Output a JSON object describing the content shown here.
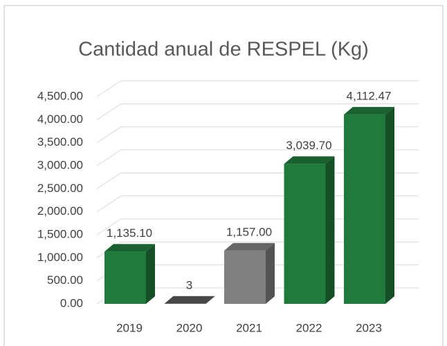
{
  "chart_data": {
    "type": "bar3d",
    "title": "Cantidad anual de RESPEL (Kg)",
    "categories": [
      "2019",
      "2020",
      "2021",
      "2022",
      "2023"
    ],
    "values": [
      1135.1,
      3,
      1157,
      3039.7,
      4112.47
    ],
    "value_labels": [
      "1,135.10",
      "3",
      "1,157.00",
      "3,039.70",
      "4,112.47"
    ],
    "colors": [
      "#1f7a3b",
      "#595959",
      "#808080",
      "#1f7a3b",
      "#1f7a3b"
    ],
    "ylim": [
      0,
      4500
    ],
    "yticks": [
      {
        "value": 0,
        "label": "0.00"
      },
      {
        "value": 500,
        "label": "500.00"
      },
      {
        "value": 1000,
        "label": "1,000.00"
      },
      {
        "value": 1500,
        "label": "1,500.00"
      },
      {
        "value": 2000,
        "label": "2,000.00"
      },
      {
        "value": 2500,
        "label": "2,500.00"
      },
      {
        "value": 3000,
        "label": "3,000.00"
      },
      {
        "value": 3500,
        "label": "3,500.00"
      },
      {
        "value": 4000,
        "label": "4,000.00"
      },
      {
        "value": 4500,
        "label": "4,500.00"
      }
    ],
    "grid": true
  }
}
